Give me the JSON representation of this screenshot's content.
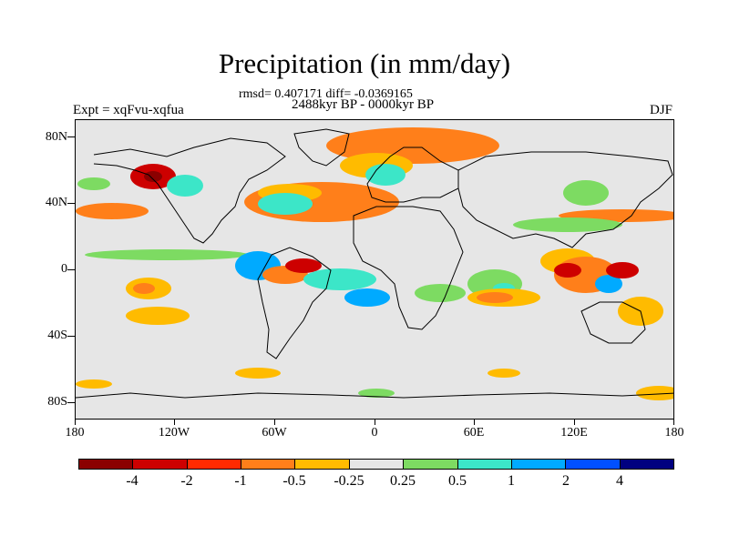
{
  "title": "Precipitation (in mm/day)",
  "stats": "rmsd= 0.407171 diff= -0.0369165",
  "period": "2488kyr BP - 0000kyr BP",
  "expt": "Expt = xqFvu-xqfua",
  "season": "DJF",
  "lat_labels": [
    "80N",
    "40N",
    "0",
    "40S",
    "80S"
  ],
  "lon_labels": [
    "180",
    "120W",
    "60W",
    "0",
    "60E",
    "120E",
    "180"
  ],
  "colorbar": {
    "labels": [
      "-4",
      "-2",
      "-1",
      "-0.5",
      "-0.25",
      "0.25",
      "0.5",
      "1",
      "2",
      "4"
    ],
    "colors": [
      "#8b0000",
      "#cd0000",
      "#ff2a00",
      "#ff7f1a",
      "#ffbb00",
      "#e6e6e6",
      "#7ddb62",
      "#3ce6c8",
      "#00aaff",
      "#0050ff",
      "#000080"
    ]
  },
  "colors": {
    "background": "#e6e6e6",
    "coastline": "#000000"
  }
}
